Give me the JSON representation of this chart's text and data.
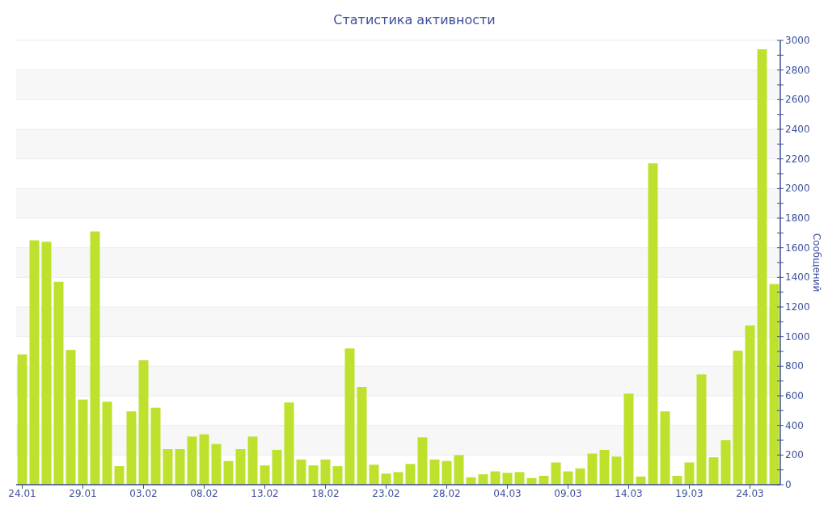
{
  "chart_data": {
    "type": "bar",
    "title": "Статистика активности",
    "ylabel": "Сообщений",
    "categories": [
      "24.01",
      null,
      null,
      null,
      null,
      "29.01",
      null,
      null,
      null,
      null,
      "03.02",
      null,
      null,
      null,
      null,
      "08.02",
      null,
      null,
      null,
      null,
      "13.02",
      null,
      null,
      null,
      null,
      "18.02",
      null,
      null,
      null,
      null,
      "23.02",
      null,
      null,
      null,
      null,
      "28.02",
      null,
      null,
      null,
      null,
      "04.03",
      null,
      null,
      null,
      null,
      "09.03",
      null,
      null,
      null,
      null,
      "14.03",
      null,
      null,
      null,
      null,
      "19.03",
      null,
      null,
      null,
      null,
      "24.03",
      null,
      null
    ],
    "values": [
      880,
      1650,
      1640,
      1370,
      910,
      575,
      1710,
      560,
      125,
      495,
      840,
      520,
      240,
      240,
      325,
      340,
      275,
      160,
      240,
      325,
      130,
      235,
      555,
      170,
      130,
      170,
      125,
      920,
      660,
      135,
      75,
      85,
      140,
      320,
      170,
      160,
      200,
      50,
      70,
      90,
      80,
      85,
      45,
      60,
      150,
      90,
      110,
      210,
      235,
      190,
      615,
      55,
      2170,
      495,
      60,
      150,
      745,
      185,
      300,
      905,
      1075,
      2940,
      1355
    ],
    "color": "#bde12d",
    "ylim": [
      0,
      3000
    ],
    "yticks": [
      0,
      {
        "value": 100,
        "label": null
      },
      200,
      {
        "value": 300,
        "label": null
      },
      400,
      {
        "value": 500,
        "label": null
      },
      600,
      {
        "value": 700,
        "label": null
      },
      800,
      {
        "value": 900,
        "label": null
      },
      1000,
      {
        "value": 1100,
        "label": null
      },
      1200,
      {
        "value": 1300,
        "label": null
      },
      1400,
      {
        "value": 1500,
        "label": null
      },
      1600,
      {
        "value": 1700,
        "label": null
      },
      1800,
      {
        "value": 1900,
        "label": null
      },
      2000,
      {
        "value": 2100,
        "label": null
      },
      2200,
      {
        "value": 2300,
        "label": null
      },
      2400,
      {
        "value": 2500,
        "label": null
      },
      2600,
      {
        "value": 2700,
        "label": null
      },
      2800,
      {
        "value": 2900,
        "label": null
      },
      3000
    ],
    "grid": "y"
  }
}
